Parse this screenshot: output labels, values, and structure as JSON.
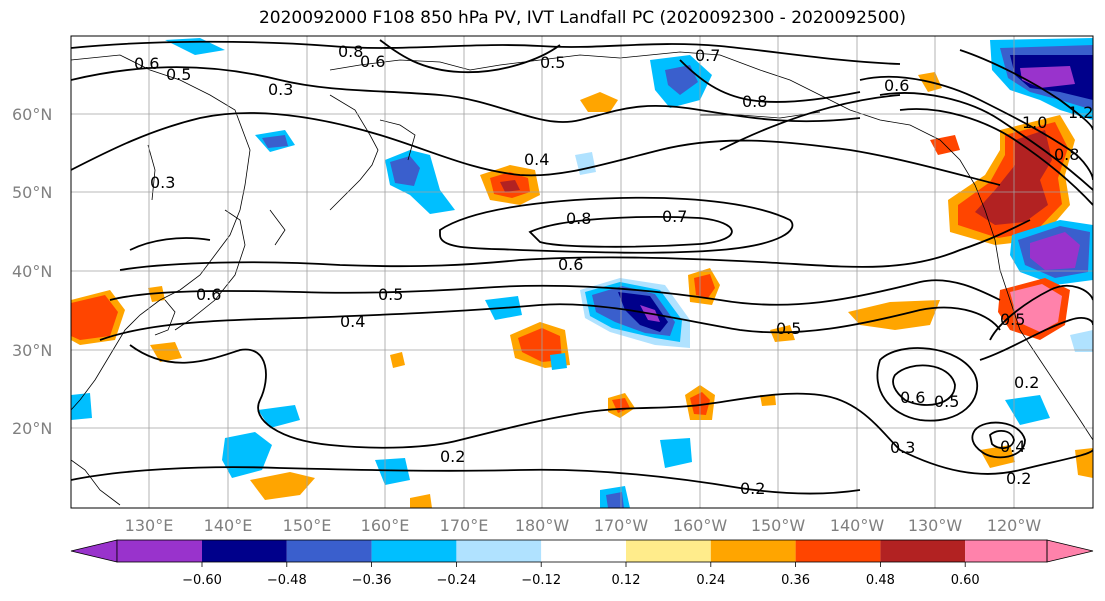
{
  "title": "2020092000 F108 850 hPa PV, IVT Landfall PC (2020092300 - 2020092500)",
  "lat_labels": [
    "60°N",
    "50°N",
    "40°N",
    "30°N",
    "20°N"
  ],
  "lon_labels": [
    "130°E",
    "140°E",
    "150°E",
    "160°E",
    "170°E",
    "180°W",
    "170°W",
    "160°W",
    "150°W",
    "140°W",
    "130°W",
    "120°W"
  ],
  "colorbar": {
    "ticks": [
      "−0.60",
      "−0.48",
      "−0.36",
      "−0.24",
      "−0.12",
      "0.12",
      "0.24",
      "0.36",
      "0.48",
      "0.60"
    ],
    "colors": [
      "#9933cc",
      "#00008b",
      "#3a5fcd",
      "#00bfff",
      "#b0e2ff",
      "#ffffff",
      "#ffec8b",
      "#ffa500",
      "#ff4500",
      "#b22222",
      "#ff82ab"
    ]
  },
  "contour_labels": [
    "0.6",
    "0.5",
    "0.8",
    "0.6",
    "0.5",
    "0.7",
    "0.8",
    "0.3",
    "0.3",
    "0.4",
    "0.8",
    "0.7",
    "0.6",
    "0.5",
    "0.4",
    "0.6",
    "0.5",
    "0.6",
    "0.5",
    "0.3",
    "0.2",
    "0.2",
    "0.2",
    "0.4",
    "0.2",
    "0.6",
    "1.0",
    "1.2",
    "0.8",
    "0.5"
  ]
}
